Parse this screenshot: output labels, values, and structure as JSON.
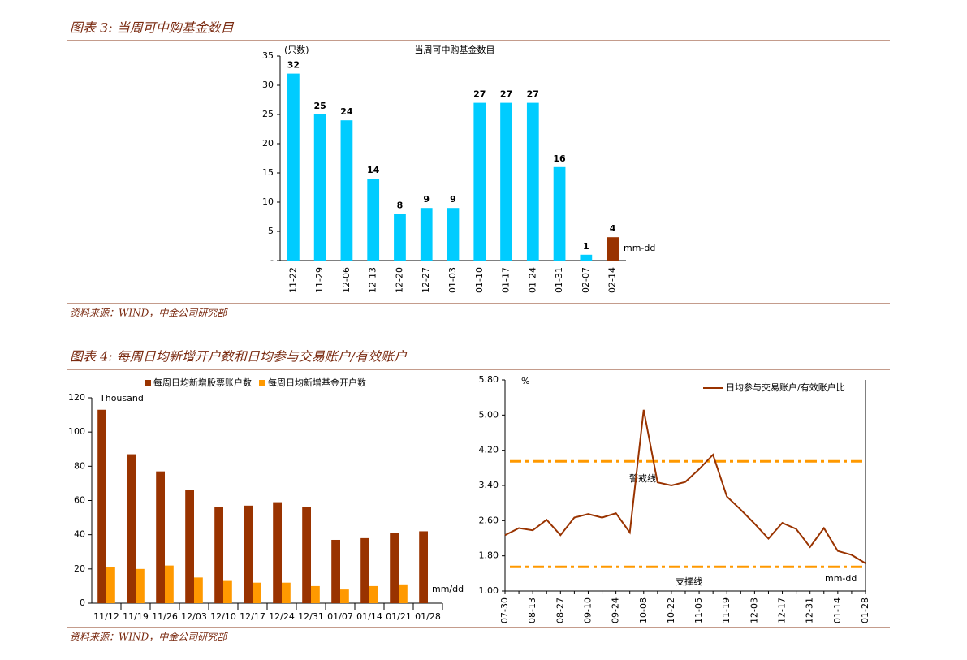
{
  "figures": [
    {
      "title": "图表 3:  当周可中购基金数目",
      "source": "资料来源：WIND，中金公司研究部"
    },
    {
      "title": "图表 4:  每周日均新增开户数和日均参与交易账户/有效账户",
      "source": "资料来源：WIND，中金公司研究部"
    }
  ],
  "chart_data": [
    {
      "type": "bar",
      "title": "当周可中购基金数目",
      "y_label": "(只数)",
      "categories": [
        "11-22",
        "11-29",
        "12-06",
        "12-13",
        "12-20",
        "12-27",
        "01-03",
        "01-10",
        "01-17",
        "01-24",
        "01-31",
        "02-07",
        "02-14"
      ],
      "values": [
        32,
        25,
        24,
        14,
        8,
        9,
        9,
        27,
        27,
        27,
        16,
        1,
        4
      ],
      "colors": [
        "#00ccff",
        "#00ccff",
        "#00ccff",
        "#00ccff",
        "#00ccff",
        "#00ccff",
        "#00ccff",
        "#00ccff",
        "#00ccff",
        "#00ccff",
        "#00ccff",
        "#00ccff",
        "#993300"
      ],
      "ylim": [
        0,
        35
      ],
      "yticks": [
        {
          "value": 0,
          "label": "-"
        },
        5,
        10,
        15,
        20,
        25,
        30,
        35
      ],
      "annotation": "mm-dd"
    },
    {
      "type": "bar",
      "y_label": "Thousand",
      "categories": [
        "11/12",
        "11/19",
        "11/26",
        "12/03",
        "12/10",
        "12/17",
        "12/24",
        "12/31",
        "01/07",
        "01/14",
        "01/21",
        "01/28"
      ],
      "series": [
        {
          "name": "每周日均新增股票账户数",
          "color": "#993300",
          "values": [
            113,
            87,
            77,
            66,
            56,
            57,
            59,
            56,
            37,
            38,
            41,
            42
          ]
        },
        {
          "name": "每周日均新增基金开户数",
          "color": "#ff9900",
          "values": [
            21,
            20,
            22,
            15,
            13,
            12,
            12,
            10,
            8,
            10,
            11,
            null
          ]
        }
      ],
      "ylim": [
        0,
        120
      ],
      "yticks": [
        0,
        20,
        40,
        60,
        80,
        100,
        120
      ],
      "annotation": "mm/dd",
      "legend": "top"
    },
    {
      "type": "line",
      "y_label": "%",
      "categories": [
        "07-30",
        null,
        "08-13",
        null,
        "08-27",
        null,
        "09-10",
        null,
        "09-24",
        null,
        "10-08",
        null,
        "10-22",
        null,
        "11-05",
        null,
        "11-19",
        null,
        "12-03",
        null,
        "12-17",
        null,
        "12-31",
        null,
        "01-14",
        null,
        "01-28"
      ],
      "series": [
        {
          "name": "日均参与交易账户/有效账户比",
          "color": "#993300",
          "values": [
            2.27,
            2.43,
            2.38,
            2.62,
            2.27,
            2.67,
            2.75,
            2.67,
            2.77,
            2.33,
            5.12,
            3.47,
            3.4,
            3.48,
            3.77,
            4.1,
            3.15,
            2.85,
            2.53,
            2.19,
            2.55,
            2.41,
            2.0,
            2.43,
            1.91,
            1.82,
            1.63
          ]
        }
      ],
      "ylim": [
        1,
        5.8
      ],
      "yticks": [
        {
          "value": 1,
          "label": "1.00"
        },
        {
          "value": 1.8,
          "label": "1.80"
        },
        {
          "value": 2.6,
          "label": "2.60"
        },
        {
          "value": 3.4,
          "label": "3.40"
        },
        {
          "value": 4.2,
          "label": "4.20"
        },
        {
          "value": 5,
          "label": "5.00"
        },
        {
          "value": 5.8,
          "label": "5.80"
        }
      ],
      "reference_lines": [
        {
          "label": "警戒线",
          "value": 3.95,
          "color": "#ff9900"
        },
        {
          "label": "支撑线",
          "value": 1.55,
          "color": "#ff9900"
        }
      ],
      "annotation": "mm-dd",
      "legend": "top-right"
    }
  ]
}
